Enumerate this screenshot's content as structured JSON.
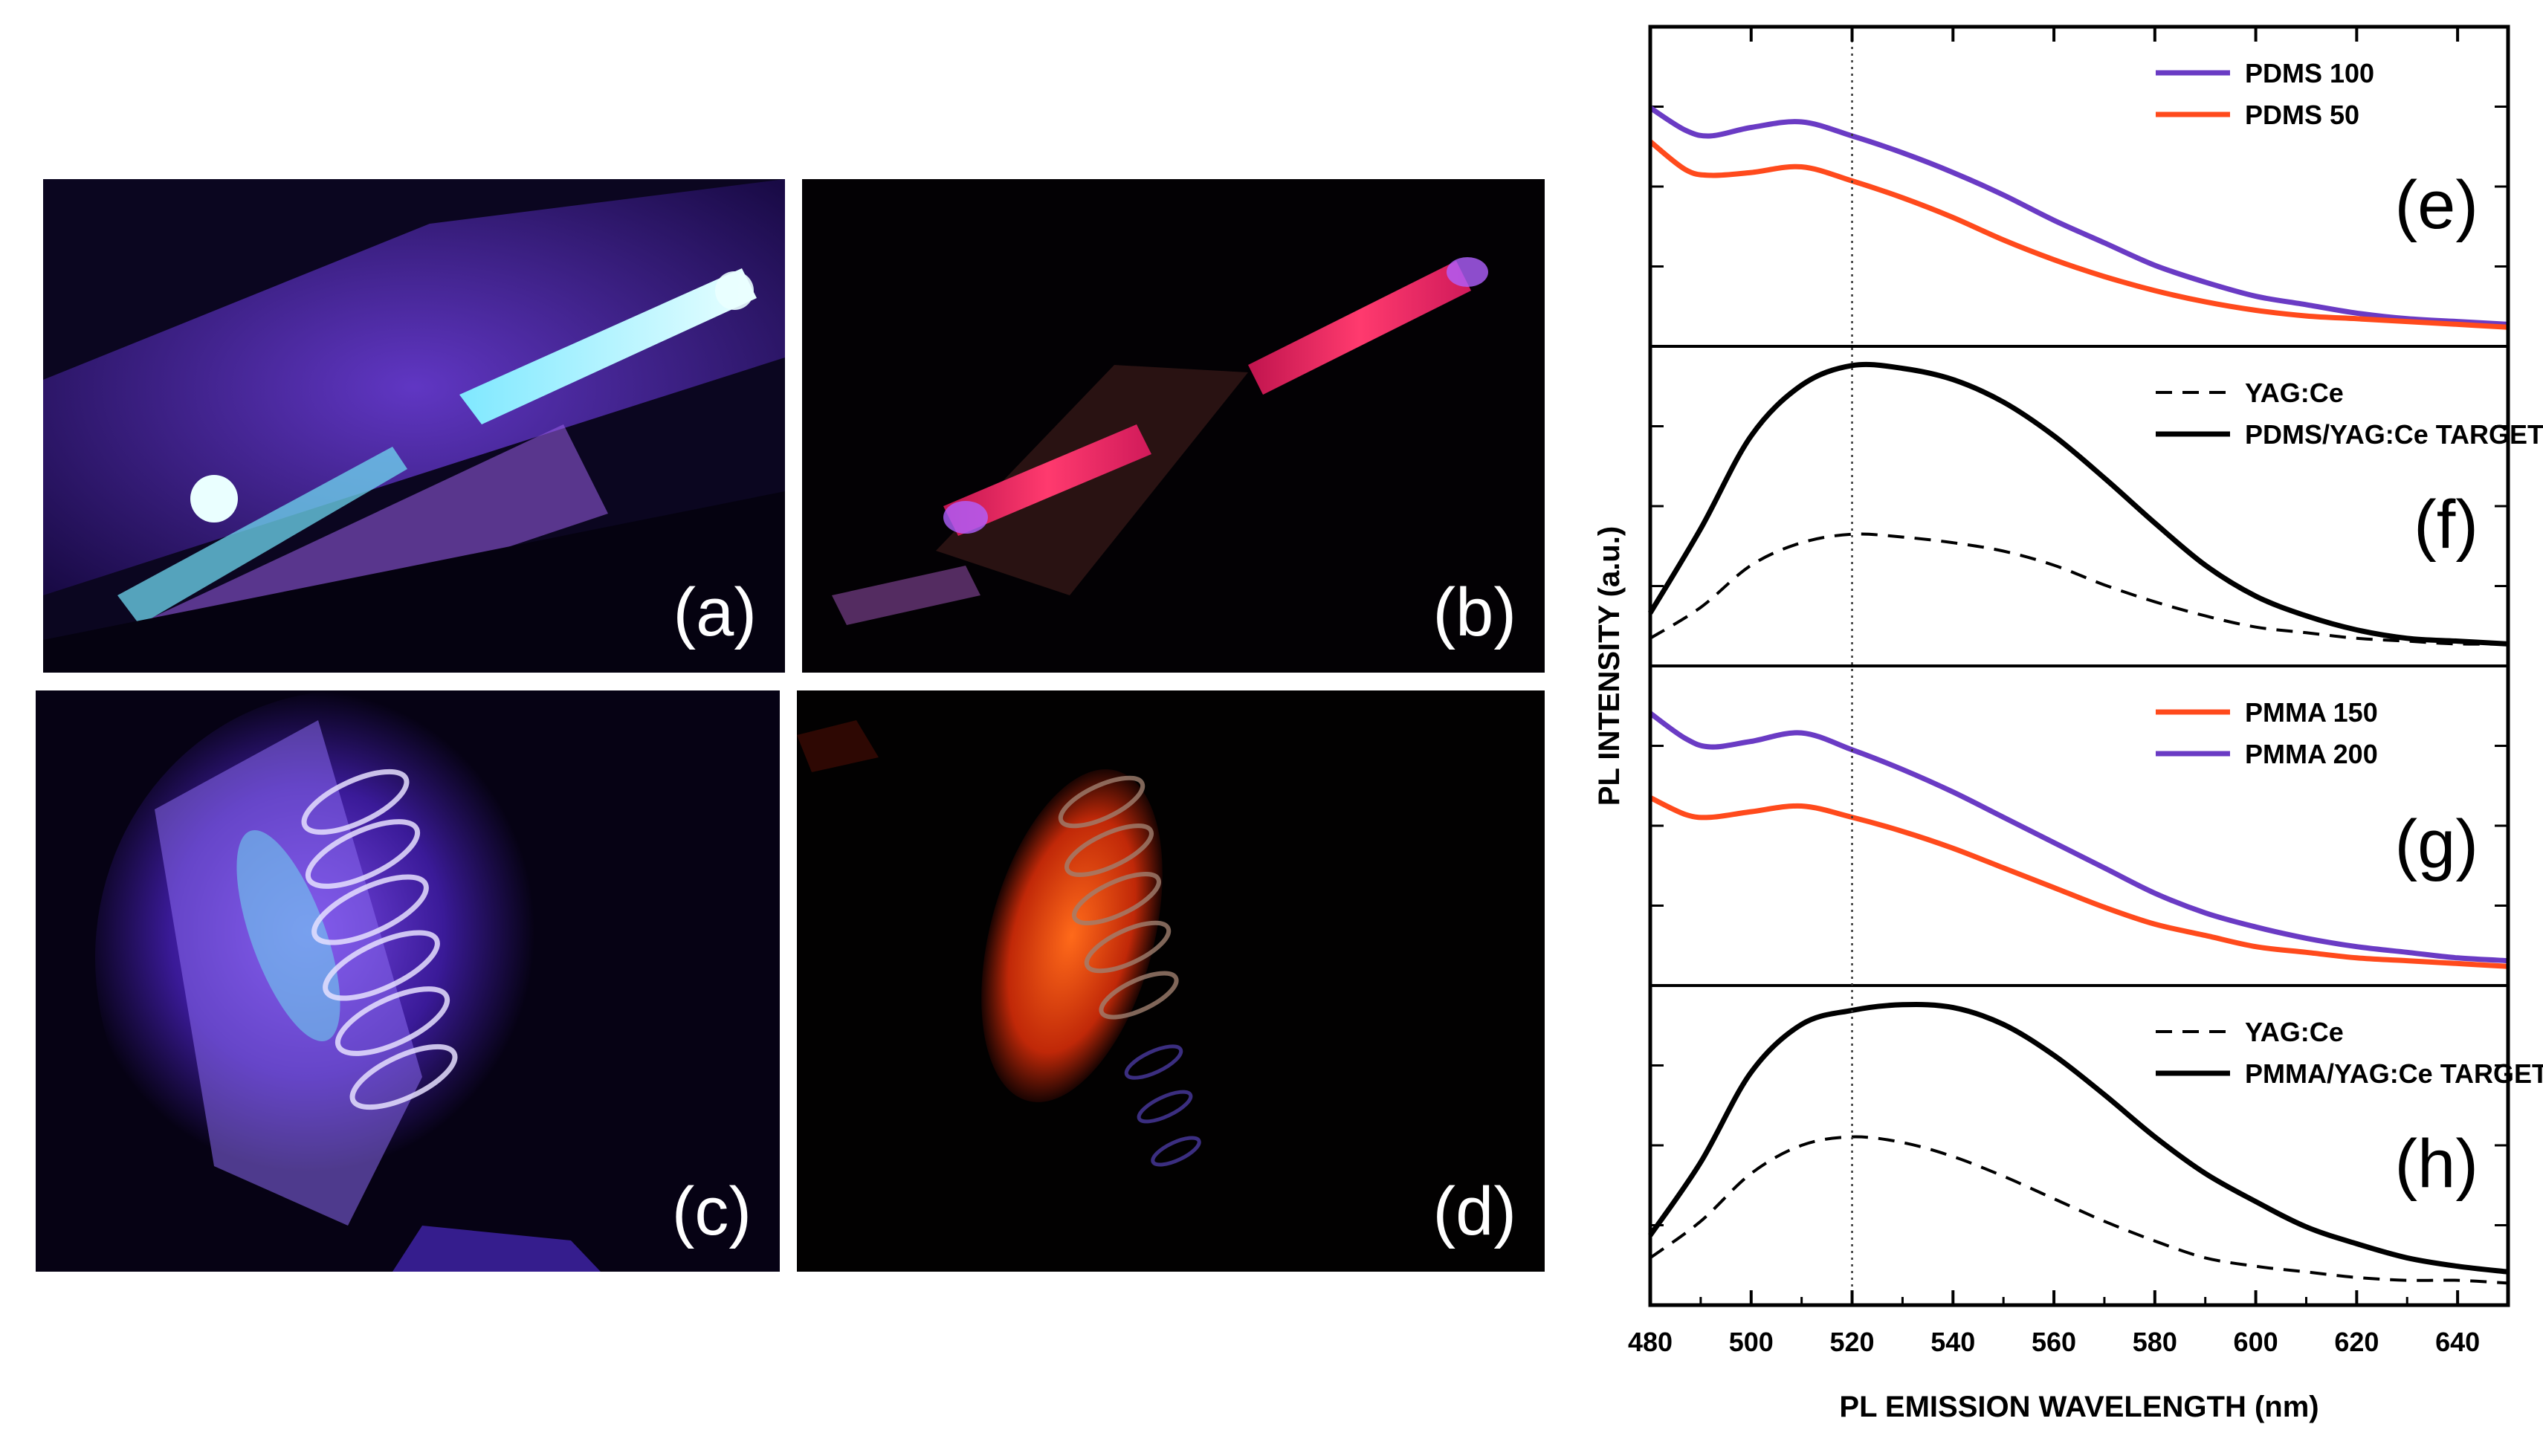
{
  "photos": [
    {
      "id": "a",
      "label": "(a)"
    },
    {
      "id": "b",
      "label": "(b)"
    },
    {
      "id": "c",
      "label": "(c)"
    },
    {
      "id": "d",
      "label": "(d)"
    }
  ],
  "chart_data": {
    "type": "line",
    "xlabel": "PL EMISSION WAVELENGTH (nm)",
    "ylabel": "PL INTENSITY (a.u.)",
    "xlim": [
      480,
      650
    ],
    "xticks": [
      480,
      500,
      520,
      540,
      560,
      580,
      600,
      620,
      640
    ],
    "reference_line_x": 520,
    "colors": {
      "purple": "#6a3bc4",
      "orange": "#ff4a1c",
      "black": "#000000"
    },
    "panels": [
      {
        "label": "(e)",
        "ylim": [
          0,
          1
        ],
        "series": [
          {
            "name": "PDMS 100",
            "color": "purple",
            "dash": false,
            "x": [
              480,
              487,
              492,
              500,
              510,
              520,
              530,
              540,
              550,
              560,
              570,
              580,
              590,
              600,
              610,
              620,
              630,
              640,
              650
            ],
            "y": [
              0.78,
              0.7,
              0.68,
              0.71,
              0.73,
              0.68,
              0.62,
              0.55,
              0.47,
              0.38,
              0.3,
              0.22,
              0.16,
              0.11,
              0.08,
              0.05,
              0.03,
              0.02,
              0.01
            ]
          },
          {
            "name": "PDMS 50",
            "color": "orange",
            "dash": false,
            "x": [
              480,
              487,
              492,
              500,
              510,
              520,
              530,
              540,
              550,
              560,
              570,
              580,
              590,
              600,
              610,
              620,
              630,
              640,
              650
            ],
            "y": [
              0.66,
              0.56,
              0.54,
              0.55,
              0.57,
              0.52,
              0.46,
              0.39,
              0.31,
              0.24,
              0.18,
              0.13,
              0.09,
              0.06,
              0.04,
              0.03,
              0.02,
              0.01,
              0.0
            ]
          }
        ]
      },
      {
        "label": "(f)",
        "ylim": [
          0,
          1
        ],
        "series": [
          {
            "name": "YAG:Ce",
            "color": "black",
            "dash": true,
            "x": [
              480,
              490,
              500,
              510,
              520,
              530,
              540,
              550,
              560,
              570,
              580,
              590,
              600,
              610,
              620,
              630,
              640,
              650
            ],
            "y": [
              0.03,
              0.14,
              0.29,
              0.37,
              0.4,
              0.39,
              0.37,
              0.34,
              0.29,
              0.22,
              0.16,
              0.11,
              0.07,
              0.05,
              0.03,
              0.02,
              0.01,
              0.01
            ]
          },
          {
            "name": "PDMS/YAG:Ce  TARGET",
            "color": "black",
            "dash": false,
            "x": [
              480,
              490,
              500,
              510,
              520,
              530,
              540,
              550,
              560,
              570,
              580,
              590,
              600,
              610,
              620,
              630,
              640,
              650
            ],
            "y": [
              0.12,
              0.42,
              0.75,
              0.93,
              1.0,
              0.99,
              0.95,
              0.87,
              0.75,
              0.6,
              0.44,
              0.29,
              0.18,
              0.11,
              0.06,
              0.03,
              0.02,
              0.01
            ]
          }
        ]
      },
      {
        "label": "(g)",
        "ylim": [
          0,
          1
        ],
        "series": [
          {
            "name": "PMMA 150",
            "color": "orange",
            "dash": false,
            "x": [
              480,
              487,
              492,
              500,
              510,
              520,
              530,
              540,
              550,
              560,
              570,
              580,
              590,
              600,
              610,
              620,
              630,
              640,
              650
            ],
            "y": [
              0.6,
              0.54,
              0.53,
              0.55,
              0.57,
              0.53,
              0.48,
              0.42,
              0.35,
              0.28,
              0.21,
              0.15,
              0.11,
              0.07,
              0.05,
              0.03,
              0.02,
              0.01,
              0.0
            ]
          },
          {
            "name": "PMMA 200",
            "color": "purple",
            "dash": false,
            "x": [
              480,
              487,
              492,
              500,
              510,
              520,
              530,
              540,
              550,
              560,
              570,
              580,
              590,
              600,
              610,
              620,
              630,
              640,
              650
            ],
            "y": [
              0.9,
              0.81,
              0.78,
              0.8,
              0.83,
              0.77,
              0.7,
              0.62,
              0.53,
              0.44,
              0.35,
              0.26,
              0.19,
              0.14,
              0.1,
              0.07,
              0.05,
              0.03,
              0.02
            ]
          }
        ]
      },
      {
        "label": "(h)",
        "ylim": [
          0,
          1
        ],
        "series": [
          {
            "name": "YAG:Ce",
            "color": "black",
            "dash": true,
            "x": [
              480,
              490,
              500,
              510,
              520,
              530,
              540,
              550,
              560,
              570,
              580,
              590,
              600,
              610,
              620,
              630,
              640,
              650
            ],
            "y": [
              0.1,
              0.23,
              0.4,
              0.5,
              0.53,
              0.51,
              0.46,
              0.39,
              0.31,
              0.23,
              0.16,
              0.1,
              0.07,
              0.05,
              0.03,
              0.02,
              0.02,
              0.01
            ]
          },
          {
            "name": "PMMA/YAG:Ce TARGET",
            "color": "black",
            "dash": false,
            "x": [
              480,
              490,
              500,
              510,
              520,
              530,
              540,
              550,
              560,
              570,
              580,
              590,
              600,
              610,
              620,
              630,
              640,
              650
            ],
            "y": [
              0.18,
              0.44,
              0.76,
              0.93,
              0.98,
              1.0,
              0.99,
              0.93,
              0.82,
              0.68,
              0.53,
              0.4,
              0.3,
              0.21,
              0.15,
              0.1,
              0.07,
              0.05
            ]
          }
        ]
      }
    ]
  }
}
